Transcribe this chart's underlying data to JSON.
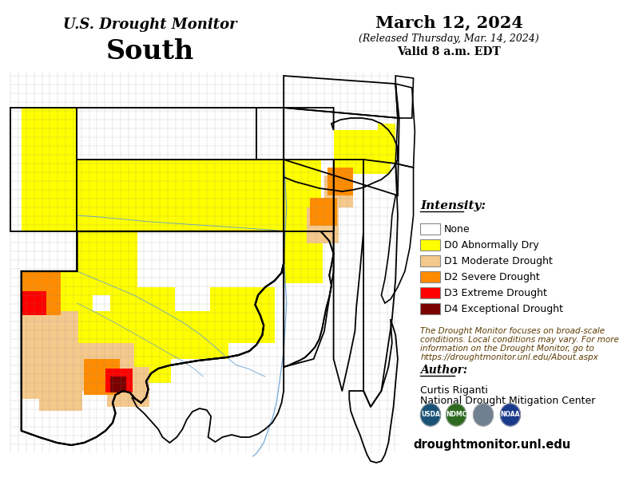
{
  "title_line1": "U.S. Drought Monitor",
  "title_line2": "South",
  "date_line1": "March 12, 2024",
  "date_line2": "(Released Thursday, Mar. 14, 2024)",
  "date_line3": "Valid 8 a.m. EDT",
  "legend_title": "Intensity:",
  "legend_items": [
    {
      "label": "None",
      "color": "#FFFFFF",
      "edgecolor": "#888888"
    },
    {
      "label": "D0 Abnormally Dry",
      "color": "#FFFF00",
      "edgecolor": "#888888"
    },
    {
      "label": "D1 Moderate Drought",
      "color": "#F5C98C",
      "edgecolor": "#888888"
    },
    {
      "label": "D2 Severe Drought",
      "color": "#FF8C00",
      "edgecolor": "#888888"
    },
    {
      "label": "D3 Extreme Drought",
      "color": "#FF0000",
      "edgecolor": "#888888"
    },
    {
      "label": "D4 Exceptional Drought",
      "color": "#7B0000",
      "edgecolor": "#888888"
    }
  ],
  "disclaimer_text": "The Drought Monitor focuses on broad-scale\nconditions. Local conditions may vary. For more\ninformation on the Drought Monitor, go to\nhttps://droughtmonitor.unl.edu/About.aspx",
  "author_label": "Author:",
  "author_name": "Curtis Riganti",
  "author_org": "National Drought Mitigation Center",
  "website": "droughtmonitor.unl.edu",
  "bg_color": "#FFFFFF",
  "text_color": "#000000",
  "brown_text": "#5C3A00",
  "navy_text": "#00008B"
}
